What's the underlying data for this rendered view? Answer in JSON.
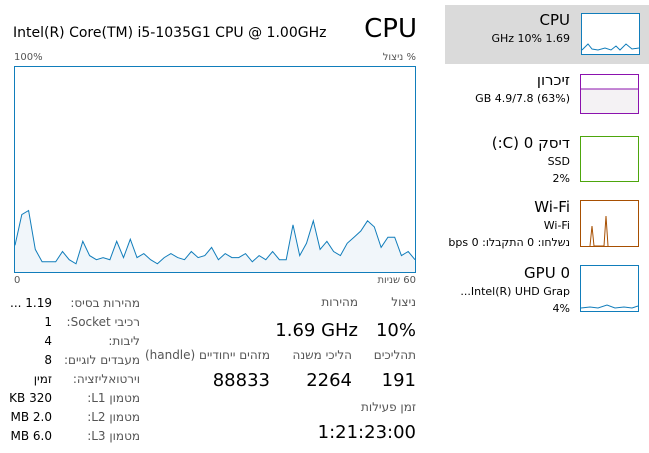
{
  "header": {
    "title": "CPU",
    "processor": "Intel(R) Core(TM) i5-1035G1 CPU @ 1.00GHz"
  },
  "graph": {
    "y_label": "% ניצול",
    "y_max_label": "100%",
    "y_min_label": "0",
    "x_label": "60 שניות",
    "ylim": [
      0,
      100
    ],
    "values": [
      13,
      28,
      30,
      11,
      5,
      5,
      5,
      10,
      6,
      4,
      15,
      8,
      6,
      7,
      6,
      15,
      7,
      16,
      7,
      9,
      6,
      4,
      7,
      9,
      7,
      6,
      10,
      7,
      8,
      12,
      6,
      9,
      7,
      7,
      9,
      5,
      8,
      6,
      10,
      6,
      6,
      23,
      8,
      14,
      25,
      11,
      15,
      10,
      8,
      14,
      17,
      20,
      25,
      22,
      12,
      17,
      17,
      8,
      10,
      6
    ]
  },
  "stats": {
    "utilization": {
      "label": "ניצול",
      "value": "10%"
    },
    "speed": {
      "label": "מהירות",
      "value": "1.69 GHz"
    },
    "processes": {
      "label": "תהליכים",
      "value": "191"
    },
    "threads": {
      "label": "הליכי משנה",
      "value": "2264"
    },
    "handles": {
      "label": "מזהים ייחודיים (handle)",
      "value": "88833"
    },
    "uptime": {
      "label": "זמן פעילות",
      "value": "1:21:23:00"
    }
  },
  "details": [
    {
      "label": "מהירות בסיס:",
      "value": "1.19 ..."
    },
    {
      "label": "רכיבי Socket:",
      "value": "1"
    },
    {
      "label": "ליבות:",
      "value": "4"
    },
    {
      "label": "מעבדים לוגיים:",
      "value": "8"
    },
    {
      "label": "וירטואליזציה:",
      "value": "זמין"
    },
    {
      "label": "מטמון L1:",
      "value": "320 KB"
    },
    {
      "label": "מטמון L2:",
      "value": "2.0 MB"
    },
    {
      "label": "מטמון L3:",
      "value": "6.0 MB"
    }
  ],
  "sidebar": [
    {
      "title": "CPU",
      "lines": [
        "1.69 GHz 10%"
      ]
    },
    {
      "title": "זיכרון",
      "lines": [
        "(63%) 4.9/7.8 GB"
      ]
    },
    {
      "title": "דיסק 0 (C:)",
      "lines": [
        "SSD",
        "2%"
      ]
    },
    {
      "title": "Wi-Fi",
      "lines": [
        "Wi-Fi",
        "נשלחו: 0 התקבלו: 0 bps"
      ]
    },
    {
      "title": "GPU 0",
      "lines": [
        "Intel(R) UHD Grap...",
        "4%"
      ]
    }
  ]
}
